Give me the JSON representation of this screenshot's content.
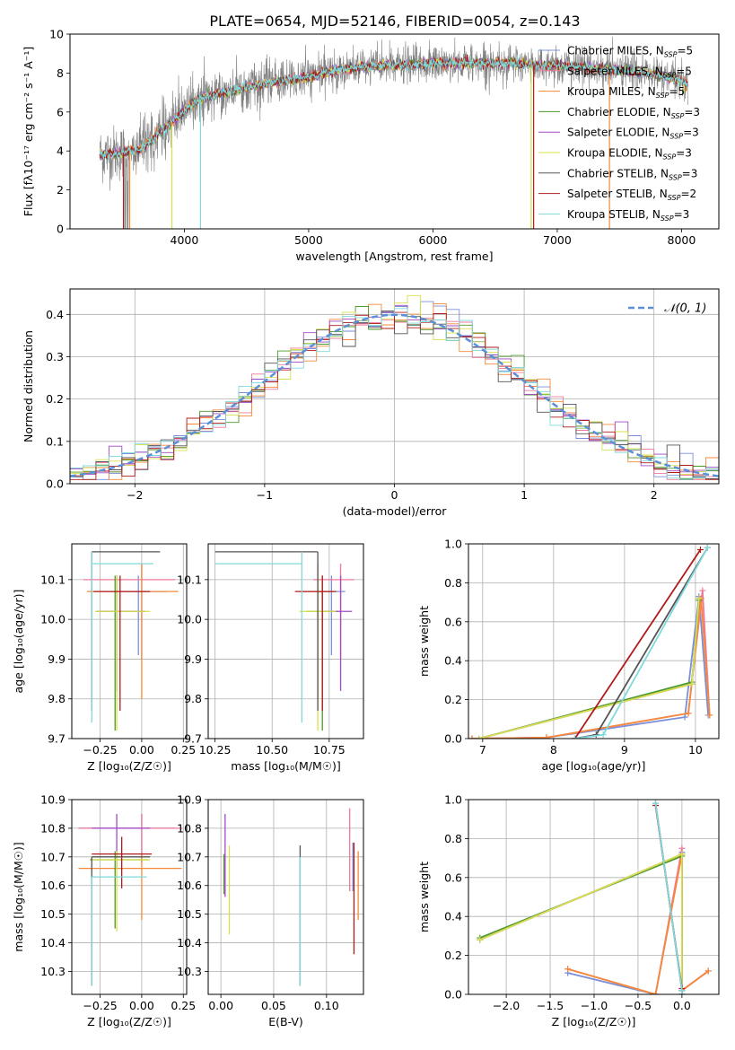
{
  "title": "PLATE=0654, MJD=52146, FIBERID=0054, z=0.143",
  "colors": {
    "Chabrier MILES": "#7a8fd8",
    "Salpeter MILES": "#f0789a",
    "Kroupa MILES": "#f58a3a",
    "Chabrier ELODIE": "#4c9a2a",
    "Salpeter ELODIE": "#a24bc8",
    "Kroupa ELODIE": "#d6e04a",
    "Chabrier STELIB": "#555555",
    "Salpeter STELIB": "#b01c1c",
    "Kroupa STELIB": "#7fd9db",
    "data": "#808080",
    "normal": "#5b8fd6"
  },
  "chart_data": [
    {
      "id": "spectrum",
      "type": "line",
      "xlabel": "wavelength [Angstrom, rest frame]",
      "ylabel": "Flux [fλ10⁻¹⁷ erg cm⁻² s⁻¹ A⁻¹]",
      "xlim": [
        3080,
        8300
      ],
      "ylim": [
        0,
        10
      ],
      "xticks": [
        4000,
        5000,
        6000,
        7000,
        8000
      ],
      "yticks": [
        0,
        2,
        4,
        6,
        8,
        10
      ],
      "continuum": {
        "x": [
          3320,
          3500,
          3650,
          3800,
          3950,
          4100,
          4250,
          4400,
          4600,
          4800,
          5000,
          5200,
          5400,
          5600,
          5800,
          6000,
          6200,
          6400,
          6600,
          6800,
          7000,
          7200,
          7400,
          7600,
          7800,
          8000,
          8050
        ],
        "y": [
          3.8,
          3.9,
          4.1,
          4.9,
          5.8,
          6.6,
          6.9,
          7.1,
          7.4,
          7.6,
          7.8,
          8.1,
          8.3,
          8.4,
          8.4,
          8.5,
          8.5,
          8.5,
          8.5,
          8.4,
          8.4,
          8.3,
          8.2,
          8.1,
          7.9,
          7.6,
          7.4
        ]
      },
      "legend": [
        "Chabrier MILES, N_SSP=5",
        "Salpeter MILES, N_SSP=5",
        "Kroupa MILES, N_SSP=5",
        "Chabrier ELODIE, N_SSP=3",
        "Salpeter ELODIE, N_SSP=3",
        "Kroupa ELODIE, N_SSP=3",
        "Chabrier STELIB, N_SSP=3",
        "Salpeter STELIB, N_SSP=2",
        "Kroupa STELIB, N_SSP=3"
      ]
    },
    {
      "id": "residuals",
      "type": "line",
      "xlabel": "(data-model)/error",
      "ylabel": "Normed distribution",
      "xlim": [
        -2.5,
        2.5
      ],
      "ylim": [
        0,
        0.46
      ],
      "xticks": [
        -2,
        -1,
        0,
        1,
        2
      ],
      "yticks": [
        0.0,
        0.1,
        0.2,
        0.3,
        0.4
      ],
      "legend": [
        "𝒩(0, 1)"
      ],
      "grid": true
    },
    {
      "id": "age_vs_Z",
      "type": "scatter",
      "xlabel": "Z [log₁₀(Z/Z☉)]",
      "ylabel": "age  [log₁₀(age/yr)]",
      "xlim": [
        -0.42,
        0.27
      ],
      "ylim": [
        9.7,
        10.19
      ],
      "xticks": [
        -0.25,
        0.0,
        0.25
      ],
      "yticks": [
        9.7,
        9.8,
        9.9,
        10.0,
        10.1
      ],
      "grid": true,
      "points": [
        {
          "s": "Chabrier MILES",
          "x": -0.02,
          "xe": [
            0.17,
            0.17
          ],
          "y": 10.07,
          "ye": [
            0.16,
            0.04
          ]
        },
        {
          "s": "Salpeter MILES",
          "x": 0.0,
          "xe": [
            0.35,
            0.2
          ],
          "y": 10.1,
          "ye": [
            0.2,
            0.04
          ]
        },
        {
          "s": "Kroupa MILES",
          "x": 0.0,
          "xe": [
            0.33,
            0.22
          ],
          "y": 10.07,
          "ye": [
            0.27,
            0.07
          ]
        },
        {
          "s": "Chabrier ELODIE",
          "x": -0.16,
          "xe": [
            0.11,
            0.18
          ],
          "y": 10.02,
          "ye": [
            0.3,
            0.09
          ]
        },
        {
          "s": "Salpeter ELODIE",
          "x": -0.15,
          "xe": [
            0.12,
            0.17
          ],
          "y": 10.02,
          "ye": [
            0.2,
            0.09
          ]
        },
        {
          "s": "Kroupa ELODIE",
          "x": -0.15,
          "xe": [
            0.13,
            0.2
          ],
          "y": 10.02,
          "ye": [
            0.3,
            0.09
          ]
        },
        {
          "s": "Chabrier STELIB",
          "x": -0.3,
          "xe": [
            0.0,
            0.41
          ],
          "y": 10.17,
          "ye": [
            0.4,
            0.0
          ]
        },
        {
          "s": "Salpeter STELIB",
          "x": -0.13,
          "xe": [
            0.16,
            0.18
          ],
          "y": 10.07,
          "ye": [
            0.3,
            0.04
          ]
        },
        {
          "s": "Kroupa STELIB",
          "x": -0.3,
          "xe": [
            0.0,
            0.37
          ],
          "y": 10.14,
          "ye": [
            0.4,
            0.03
          ]
        }
      ]
    },
    {
      "id": "age_vs_mass",
      "type": "scatter",
      "xlabel": "mass [log₁₀(M/M☉)]",
      "ylabel": "",
      "xlim": [
        10.22,
        10.9
      ],
      "ylim": [
        9.7,
        10.19
      ],
      "xticks": [
        10.25,
        10.5,
        10.75
      ],
      "yticks": [
        9.7,
        9.8,
        9.9,
        10.0,
        10.1
      ],
      "grid": true,
      "points": [
        {
          "s": "Chabrier MILES",
          "x": 10.76,
          "xe": [
            0.06,
            0.06
          ],
          "y": 10.07,
          "ye": [
            0.16,
            0.04
          ]
        },
        {
          "s": "Salpeter MILES",
          "x": 10.8,
          "xe": [
            0.12,
            0.06
          ],
          "y": 10.1,
          "ye": [
            0.2,
            0.04
          ]
        },
        {
          "s": "Kroupa MILES",
          "x": 10.7,
          "xe": [
            0.08,
            0.08
          ],
          "y": 10.07,
          "ye": [
            0.27,
            0.07
          ]
        },
        {
          "s": "Chabrier ELODIE",
          "x": 10.72,
          "xe": [
            0.07,
            0.07
          ],
          "y": 10.02,
          "ye": [
            0.3,
            0.09
          ]
        },
        {
          "s": "Salpeter ELODIE",
          "x": 10.8,
          "xe": [
            0.07,
            0.05
          ],
          "y": 10.02,
          "ye": [
            0.2,
            0.09
          ]
        },
        {
          "s": "Kroupa ELODIE",
          "x": 10.7,
          "xe": [
            0.08,
            0.08
          ],
          "y": 10.02,
          "ye": [
            0.3,
            0.09
          ]
        },
        {
          "s": "Chabrier STELIB",
          "x": 10.7,
          "xe": [
            0.45,
            0.0
          ],
          "y": 10.17,
          "ye": [
            0.4,
            0.0
          ]
        },
        {
          "s": "Salpeter STELIB",
          "x": 10.72,
          "xe": [
            0.12,
            0.06
          ],
          "y": 10.07,
          "ye": [
            0.3,
            0.04
          ]
        },
        {
          "s": "Kroupa STELIB",
          "x": 10.63,
          "xe": [
            0.38,
            0.0
          ],
          "y": 10.14,
          "ye": [
            0.4,
            0.03
          ]
        }
      ]
    },
    {
      "id": "weight_vs_age",
      "type": "line",
      "xlabel": "age  [log₁₀(age/yr)]",
      "ylabel": "mass weight",
      "xlim": [
        6.8,
        10.33
      ],
      "ylim": [
        0,
        1
      ],
      "xticks": [
        7,
        8,
        9,
        10
      ],
      "yticks": [
        0.0,
        0.2,
        0.4,
        0.6,
        0.8,
        1.0
      ],
      "grid": true,
      "series": [
        {
          "s": "Chabrier MILES",
          "x": [
            6.85,
            7.9,
            9.85,
            10.05,
            10.18
          ],
          "y": [
            0.0,
            0.005,
            0.11,
            0.73,
            0.12
          ]
        },
        {
          "s": "Salpeter MILES",
          "x": [
            6.85,
            7.9,
            9.9,
            10.1,
            10.2
          ],
          "y": [
            0.0,
            0.005,
            0.13,
            0.76,
            0.12
          ]
        },
        {
          "s": "Kroupa MILES",
          "x": [
            6.85,
            7.9,
            9.9,
            10.08,
            10.2
          ],
          "y": [
            0.0,
            0.005,
            0.13,
            0.72,
            0.12
          ]
        },
        {
          "s": "Chabrier ELODIE",
          "x": [
            6.95,
            9.95,
            10.05
          ],
          "y": [
            0.0,
            0.29,
            0.71
          ]
        },
        {
          "s": "Salpeter ELODIE",
          "x": [
            6.95,
            9.95,
            10.05
          ],
          "y": [
            0.0,
            0.28,
            0.72
          ]
        },
        {
          "s": "Kroupa ELODIE",
          "x": [
            6.95,
            9.95,
            10.05
          ],
          "y": [
            0.0,
            0.28,
            0.72
          ]
        },
        {
          "s": "Chabrier STELIB",
          "x": [
            8.3,
            8.6,
            10.17
          ],
          "y": [
            0.0,
            0.02,
            0.98
          ]
        },
        {
          "s": "Salpeter STELIB",
          "x": [
            8.3,
            10.07
          ],
          "y": [
            0.0,
            0.97
          ]
        },
        {
          "s": "Kroupa STELIB",
          "x": [
            8.3,
            8.7,
            10.17
          ],
          "y": [
            0.0,
            0.02,
            0.98
          ]
        }
      ]
    },
    {
      "id": "mass_vs_Z",
      "type": "scatter",
      "xlabel": "Z [log₁₀(Z/Z☉)]",
      "ylabel": "mass [log₁₀(M/M☉)]",
      "xlim": [
        -0.42,
        0.27
      ],
      "ylim": [
        10.22,
        10.9
      ],
      "xticks": [
        -0.25,
        0.0,
        0.25
      ],
      "yticks": [
        10.3,
        10.4,
        10.5,
        10.6,
        10.7,
        10.8,
        10.9
      ],
      "grid": true,
      "points": [
        {
          "s": "Chabrier MILES",
          "x": 0.0,
          "xe": [
            0.38,
            0.2
          ],
          "y": 10.8,
          "ye": [
            0.12,
            0.05
          ]
        },
        {
          "s": "Salpeter MILES",
          "x": 0.0,
          "xe": [
            0.38,
            0.24
          ],
          "y": 10.8,
          "ye": [
            0.12,
            0.05
          ]
        },
        {
          "s": "Kroupa MILES",
          "x": 0.0,
          "xe": [
            0.38,
            0.24
          ],
          "y": 10.66,
          "ye": [
            0.18,
            0.05
          ]
        },
        {
          "s": "Chabrier ELODIE",
          "x": -0.16,
          "xe": [
            0.15,
            0.2
          ],
          "y": 10.69,
          "ye": [
            0.24,
            0.03
          ]
        },
        {
          "s": "Salpeter ELODIE",
          "x": -0.15,
          "xe": [
            0.15,
            0.2
          ],
          "y": 10.8,
          "ye": [
            0.14,
            0.05
          ]
        },
        {
          "s": "Kroupa ELODIE",
          "x": -0.15,
          "xe": [
            0.15,
            0.2
          ],
          "y": 10.69,
          "ye": [
            0.25,
            0.03
          ]
        },
        {
          "s": "Chabrier STELIB",
          "x": -0.3,
          "xe": [
            0.0,
            0.35
          ],
          "y": 10.7,
          "ye": [
            0.45,
            0.0
          ]
        },
        {
          "s": "Salpeter STELIB",
          "x": -0.12,
          "xe": [
            0.18,
            0.18
          ],
          "y": 10.71,
          "ye": [
            0.12,
            0.06
          ]
        },
        {
          "s": "Kroupa STELIB",
          "x": -0.3,
          "xe": [
            0.0,
            0.33
          ],
          "y": 10.63,
          "ye": [
            0.38,
            0.0
          ]
        }
      ]
    },
    {
      "id": "mass_vs_ebv",
      "type": "scatter",
      "xlabel": "E(B-V)",
      "ylabel": "",
      "xlim": [
        -0.012,
        0.135
      ],
      "ylim": [
        10.22,
        10.9
      ],
      "xticks": [
        0.0,
        0.05,
        0.1
      ],
      "yticks": [
        10.3,
        10.4,
        10.5,
        10.6,
        10.7,
        10.8,
        10.9
      ],
      "grid": true,
      "points": [
        {
          "s": "Chabrier MILES",
          "x": 0.125,
          "y": 10.7,
          "ye": [
            0.12,
            0.05
          ]
        },
        {
          "s": "Salpeter MILES",
          "x": 0.122,
          "y": 10.8,
          "ye": [
            0.22,
            0.07
          ]
        },
        {
          "s": "Kroupa MILES",
          "x": 0.13,
          "y": 10.66,
          "ye": [
            0.18,
            0.06
          ]
        },
        {
          "s": "Chabrier ELODIE",
          "x": 0.003,
          "y": 10.69,
          "ye": [
            0.12,
            0.02
          ]
        },
        {
          "s": "Salpeter ELODIE",
          "x": 0.004,
          "y": 10.75,
          "ye": [
            0.19,
            0.1
          ]
        },
        {
          "s": "Kroupa ELODIE",
          "x": 0.008,
          "y": 10.65,
          "ye": [
            0.22,
            0.09
          ]
        },
        {
          "s": "Chabrier STELIB",
          "x": 0.075,
          "y": 10.7,
          "ye": [
            0.45,
            0.04
          ]
        },
        {
          "s": "Salpeter STELIB",
          "x": 0.126,
          "y": 10.7,
          "ye": [
            0.34,
            0.05
          ]
        },
        {
          "s": "Kroupa STELIB",
          "x": 0.075,
          "y": 10.63,
          "ye": [
            0.38,
            0.07
          ]
        }
      ]
    },
    {
      "id": "weight_vs_Z",
      "type": "line",
      "xlabel": "Z [log₁₀(Z/Z☉)]",
      "ylabel": "mass weight",
      "xlim": [
        -2.43,
        0.42
      ],
      "ylim": [
        0,
        1
      ],
      "xticks": [
        -2.0,
        -1.5,
        -1.0,
        -0.5,
        0.0
      ],
      "yticks": [
        0.0,
        0.2,
        0.4,
        0.6,
        0.8,
        1.0
      ],
      "grid": true,
      "series": [
        {
          "s": "Chabrier MILES",
          "x": [
            -1.3,
            -0.3,
            0.0,
            0.0,
            0.3
          ],
          "y": [
            0.11,
            0.0,
            0.73,
            0.02,
            0.12
          ]
        },
        {
          "s": "Salpeter MILES",
          "x": [
            -1.3,
            -0.3,
            0.0,
            0.0,
            0.3
          ],
          "y": [
            0.13,
            0.0,
            0.75,
            0.02,
            0.12
          ]
        },
        {
          "s": "Kroupa MILES",
          "x": [
            -1.3,
            -0.3,
            0.0,
            0.0,
            0.3
          ],
          "y": [
            0.13,
            0.0,
            0.72,
            0.02,
            0.12
          ]
        },
        {
          "s": "Chabrier ELODIE",
          "x": [
            -2.3,
            0.0,
            0.0
          ],
          "y": [
            0.29,
            0.71,
            0.0
          ]
        },
        {
          "s": "Salpeter ELODIE",
          "x": [
            -2.3,
            0.0,
            0.0
          ],
          "y": [
            0.28,
            0.72,
            0.0
          ]
        },
        {
          "s": "Kroupa ELODIE",
          "x": [
            -2.3,
            0.0,
            0.0
          ],
          "y": [
            0.28,
            0.72,
            0.0
          ]
        },
        {
          "s": "Chabrier STELIB",
          "x": [
            -0.3,
            0.0,
            0.0
          ],
          "y": [
            0.98,
            0.02,
            0.0
          ]
        },
        {
          "s": "Salpeter STELIB",
          "x": [
            -0.3,
            0.0
          ],
          "y": [
            0.97,
            0.03
          ]
        },
        {
          "s": "Kroupa STELIB",
          "x": [
            -0.3,
            0.0,
            0.0
          ],
          "y": [
            0.98,
            0.02,
            0.0
          ]
        }
      ]
    }
  ]
}
